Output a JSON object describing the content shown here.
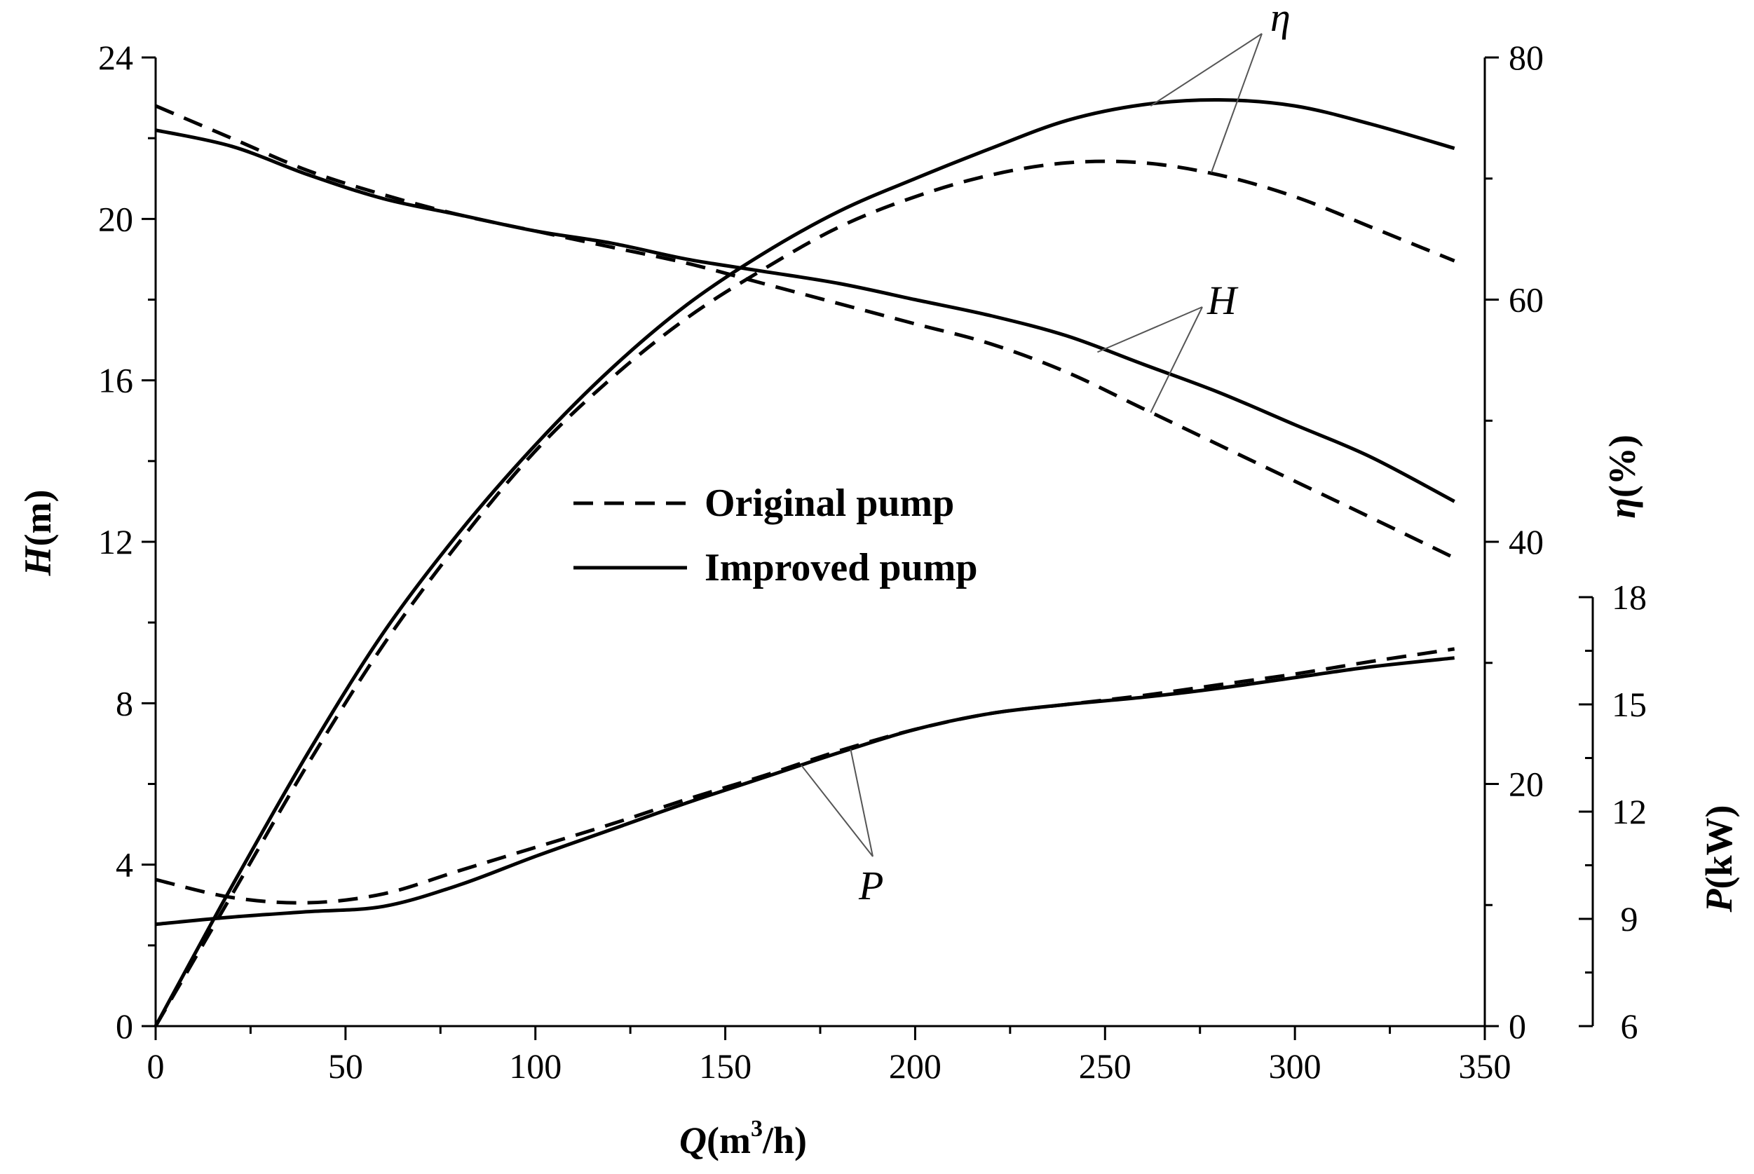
{
  "chart_data": {
    "type": "line",
    "x_axis": {
      "label_main": "Q",
      "label_unit_prefix": "(m",
      "label_unit_sup": "3",
      "label_unit_suffix": "/h)",
      "range": [
        0,
        350
      ],
      "ticks": [
        0,
        50,
        100,
        150,
        200,
        250,
        300,
        350
      ]
    },
    "y_axis_left": {
      "label_main": "H",
      "label_unit": "(m)",
      "range": [
        0,
        24
      ],
      "ticks": [
        0,
        4,
        8,
        12,
        16,
        20,
        24
      ]
    },
    "y_axis_right_eta": {
      "label_main": "η",
      "label_unit": "(%)",
      "range": [
        0,
        80
      ],
      "ticks": [
        0,
        20,
        40,
        60,
        80
      ]
    },
    "y_axis_right_p": {
      "label_main": "P",
      "label_unit": "(kW)",
      "range": [
        6,
        18
      ],
      "ticks": [
        6,
        9,
        12,
        15,
        18
      ]
    },
    "legend": [
      {
        "name": "Original pump",
        "style": "dashed"
      },
      {
        "name": "Improved pump",
        "style": "solid"
      }
    ],
    "annotations": {
      "eta": "η",
      "head": "H",
      "power": "P"
    },
    "series": [
      {
        "name": "H - Original pump",
        "axis": "H",
        "style": "dashed",
        "x": [
          0,
          20,
          40,
          60,
          80,
          100,
          120,
          140,
          160,
          180,
          200,
          220,
          240,
          260,
          280,
          300,
          320,
          342
        ],
        "y": [
          22.8,
          22.0,
          21.2,
          20.6,
          20.1,
          19.7,
          19.3,
          18.9,
          18.4,
          17.9,
          17.4,
          16.9,
          16.2,
          15.3,
          14.4,
          13.5,
          12.6,
          11.6
        ]
      },
      {
        "name": "H - Improved pump",
        "axis": "H",
        "style": "solid",
        "x": [
          0,
          20,
          40,
          60,
          80,
          100,
          120,
          140,
          160,
          180,
          200,
          220,
          240,
          260,
          280,
          300,
          320,
          342
        ],
        "y": [
          22.2,
          21.8,
          21.1,
          20.5,
          20.1,
          19.7,
          19.4,
          19.0,
          18.7,
          18.4,
          18.0,
          17.6,
          17.1,
          16.4,
          15.7,
          14.9,
          14.1,
          13.0
        ]
      },
      {
        "name": "η - Original pump",
        "axis": "eta",
        "style": "dashed",
        "x": [
          0,
          20,
          40,
          60,
          80,
          100,
          120,
          140,
          160,
          180,
          200,
          220,
          240,
          260,
          280,
          300,
          320,
          342
        ],
        "y": [
          0,
          10.8,
          21.6,
          31.5,
          40.0,
          47.5,
          53.5,
          58.5,
          62.5,
          66.0,
          68.5,
          70.3,
          71.3,
          71.3,
          70.3,
          68.5,
          66.0,
          63.2
        ]
      },
      {
        "name": "η - Improved pump",
        "axis": "eta",
        "style": "solid",
        "x": [
          0,
          20,
          40,
          60,
          80,
          100,
          120,
          140,
          160,
          180,
          200,
          220,
          240,
          260,
          280,
          300,
          320,
          342
        ],
        "y": [
          0,
          11.5,
          22.5,
          32.5,
          40.8,
          48.0,
          54.3,
          59.6,
          63.8,
          67.3,
          70.0,
          72.5,
          74.8,
          76.1,
          76.5,
          76.0,
          74.5,
          72.5
        ]
      },
      {
        "name": "P - Original pump",
        "axis": "P",
        "style": "dashed",
        "x": [
          0,
          20,
          40,
          60,
          80,
          100,
          120,
          140,
          160,
          180,
          200,
          220,
          240,
          260,
          280,
          300,
          320,
          342
        ],
        "y": [
          10.1,
          9.6,
          9.45,
          9.7,
          10.35,
          11.0,
          11.65,
          12.35,
          13.0,
          13.7,
          14.3,
          14.75,
          15.0,
          15.25,
          15.55,
          15.85,
          16.2,
          16.55
        ]
      },
      {
        "name": "P - Improved pump",
        "axis": "P",
        "style": "solid",
        "x": [
          0,
          20,
          40,
          60,
          80,
          100,
          120,
          140,
          160,
          180,
          200,
          220,
          240,
          260,
          280,
          300,
          320,
          342
        ],
        "y": [
          8.85,
          9.05,
          9.2,
          9.35,
          9.95,
          10.75,
          11.5,
          12.25,
          12.95,
          13.65,
          14.3,
          14.75,
          15.0,
          15.2,
          15.45,
          15.75,
          16.05,
          16.3
        ]
      }
    ]
  }
}
